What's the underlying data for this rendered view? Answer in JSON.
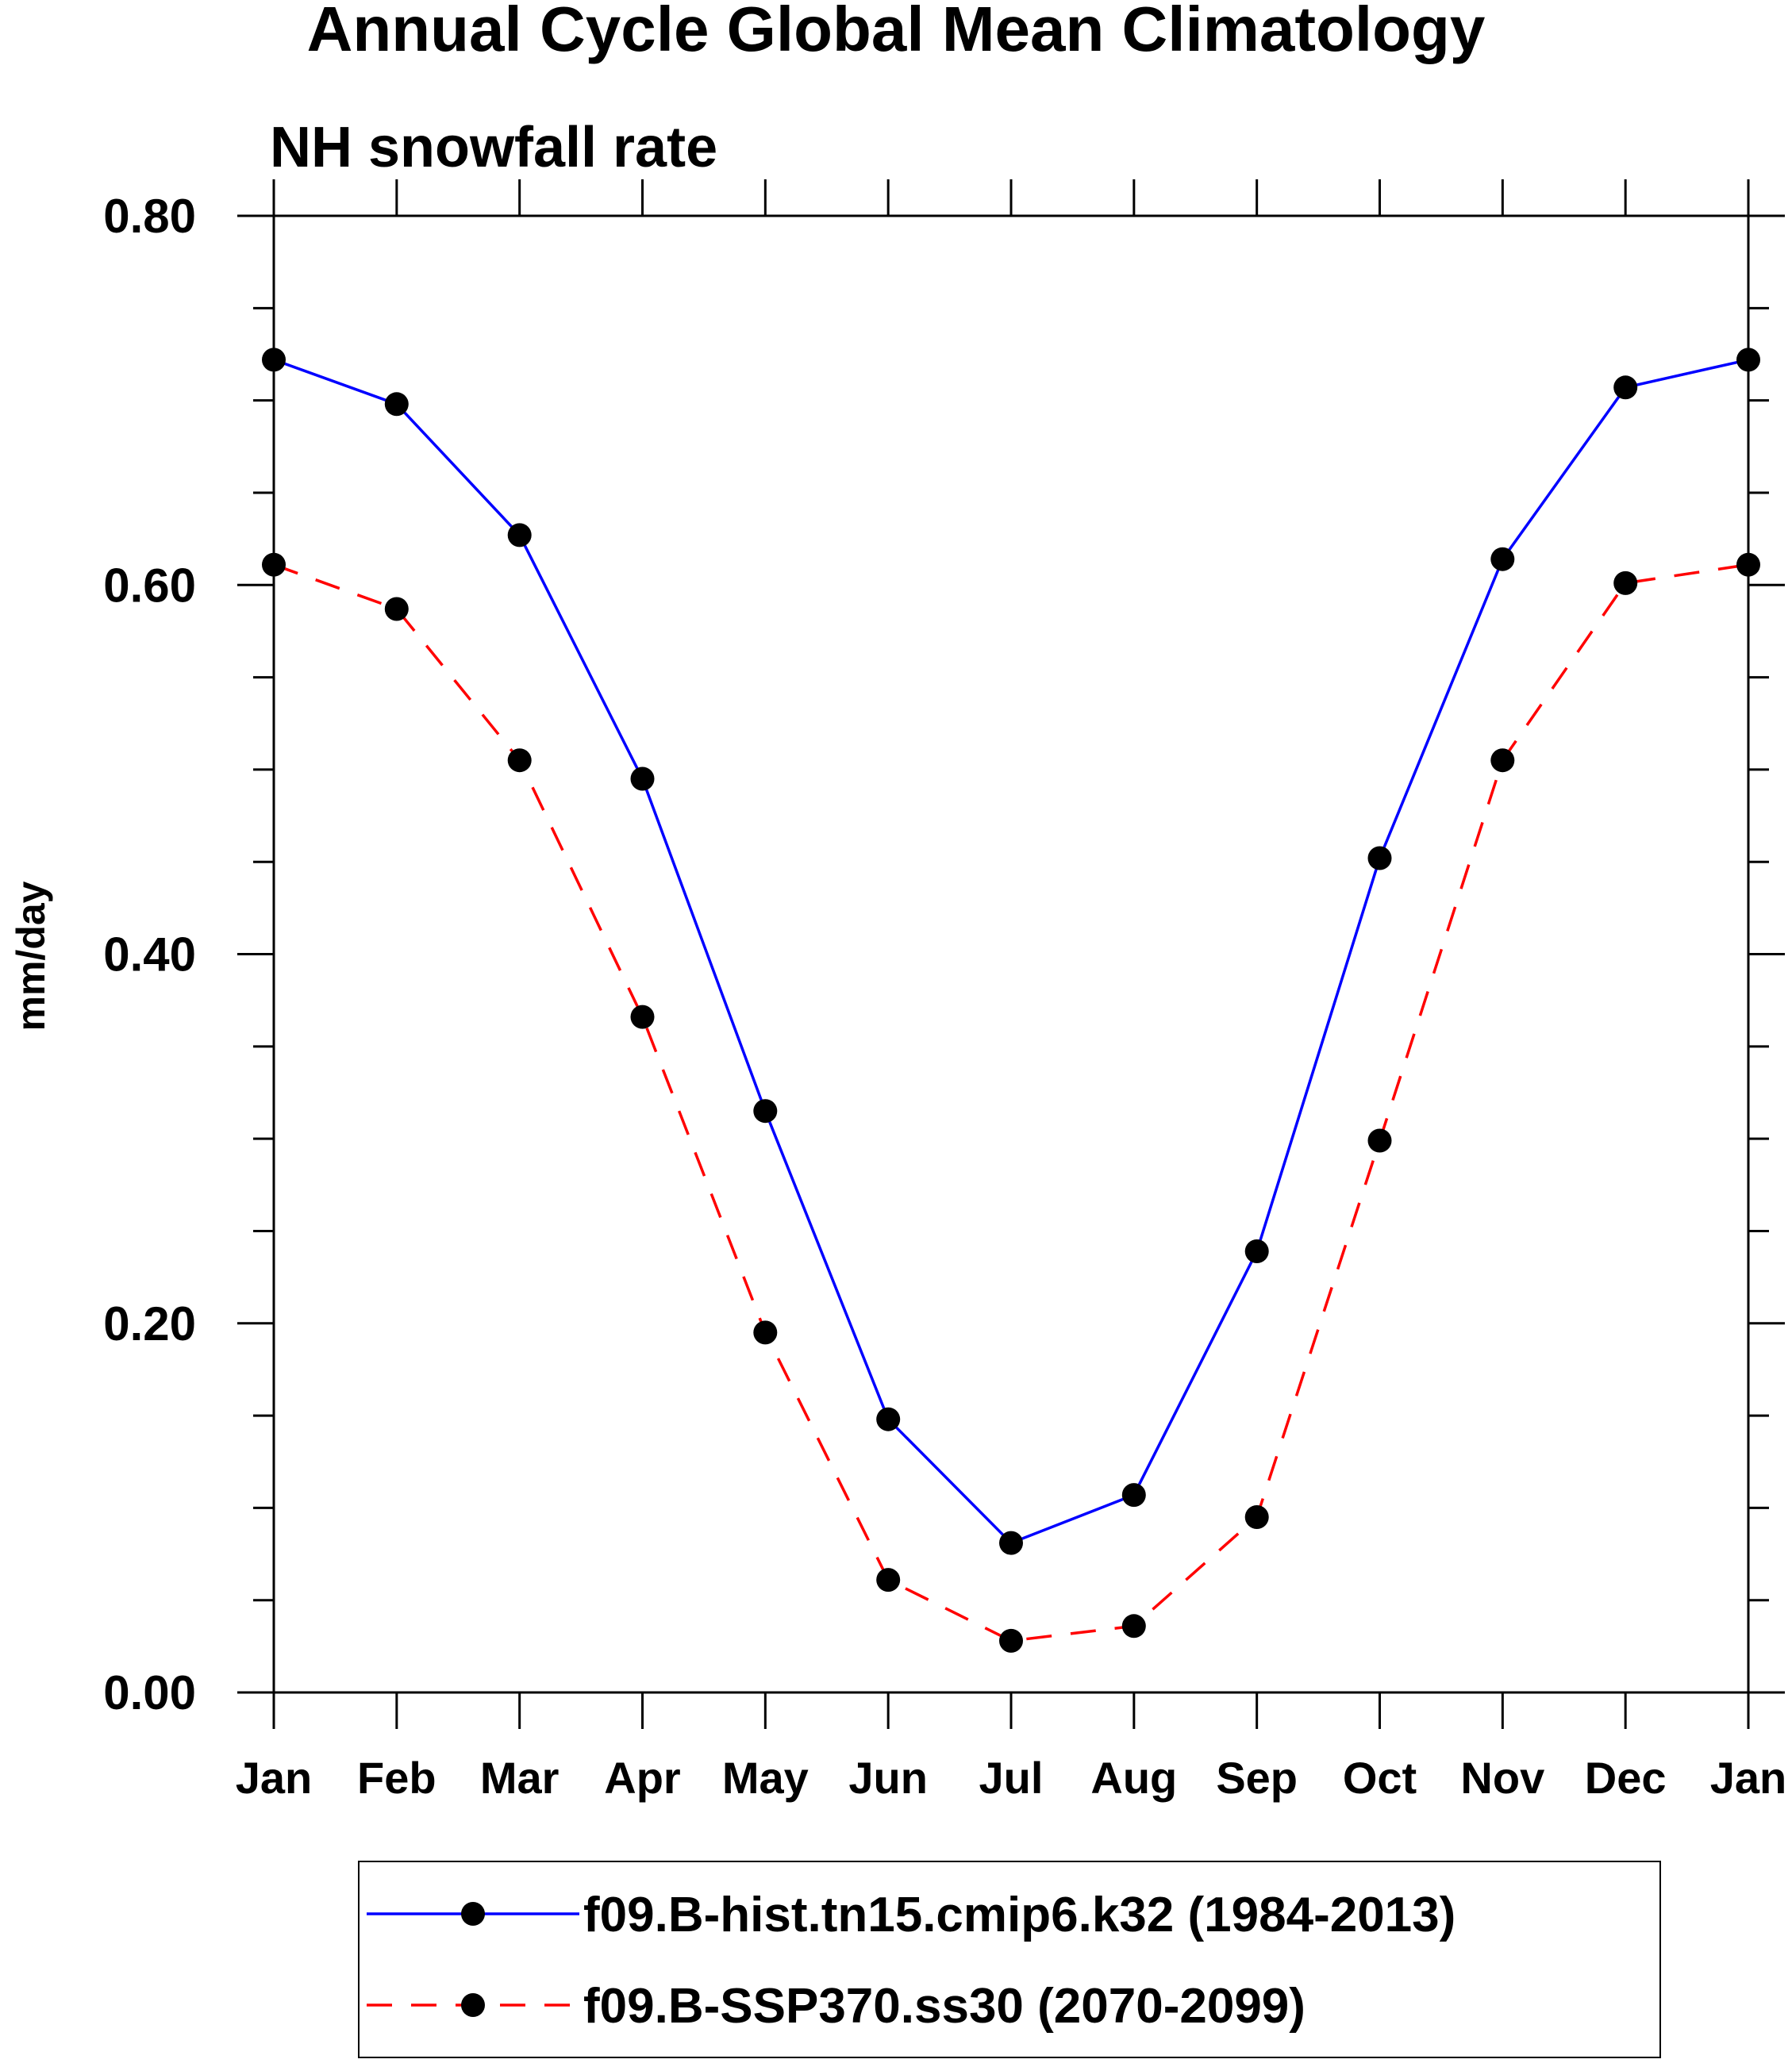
{
  "chart_data": {
    "type": "line",
    "title": "Annual Cycle Global Mean Climatology",
    "subtitle": "NH snowfall rate",
    "xlabel": "",
    "ylabel": "mm/day",
    "categories": [
      "Jan",
      "Feb",
      "Mar",
      "Apr",
      "May",
      "Jun",
      "Jul",
      "Aug",
      "Sep",
      "Oct",
      "Nov",
      "Dec",
      "Jan"
    ],
    "ylim": [
      0.0,
      0.8
    ],
    "yticks": [
      0.0,
      0.2,
      0.4,
      0.6,
      0.8
    ],
    "ytick_labels": [
      "0.00",
      "0.20",
      "0.40",
      "0.60",
      "0.80"
    ],
    "grid": false,
    "legend_position": "bottom",
    "series": [
      {
        "name": "f09.B-hist.tn15.cmip6.k32 (1984-2013)",
        "color": "#0000ff",
        "line_style": "solid",
        "marker": "filled-circle",
        "values": [
          0.722,
          0.698,
          0.627,
          0.495,
          0.315,
          0.148,
          0.081,
          0.107,
          0.239,
          0.452,
          0.614,
          0.707,
          0.722
        ]
      },
      {
        "name": "f09.B-SSP370.ss30 (2070-2099)",
        "color": "#ff0000",
        "line_style": "dashed",
        "marker": "filled-circle",
        "values": [
          0.611,
          0.587,
          0.505,
          0.366,
          0.195,
          0.061,
          0.028,
          0.036,
          0.095,
          0.299,
          0.505,
          0.601,
          0.611
        ]
      }
    ]
  }
}
